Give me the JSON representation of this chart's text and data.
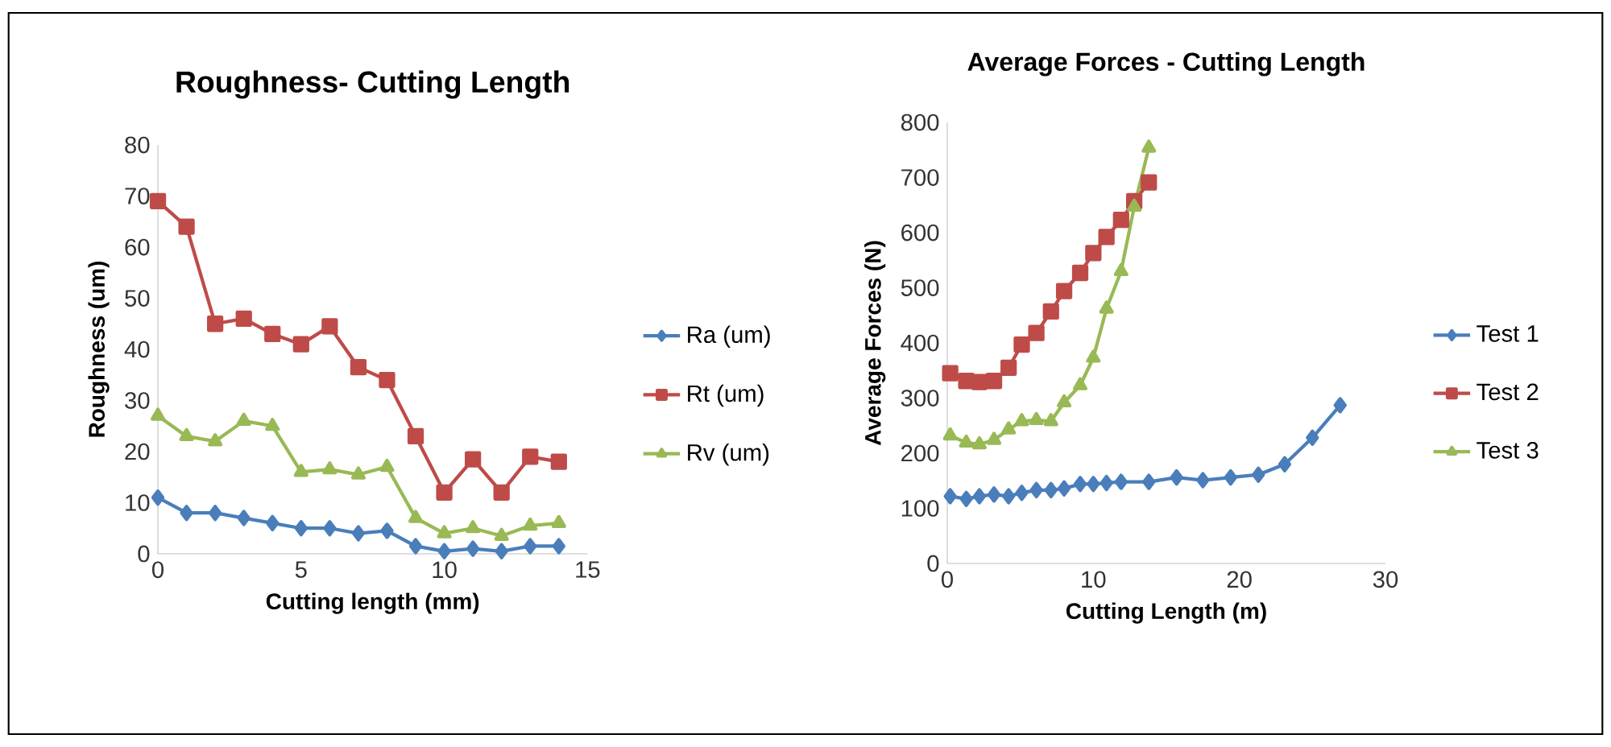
{
  "chart_data": [
    {
      "type": "line",
      "title": "Roughness- Cutting Length",
      "xlabel": "Cutting length (mm)",
      "ylabel": "Roughness (um)",
      "x": [
        0,
        1,
        2,
        3,
        4,
        5,
        6,
        7,
        8,
        9,
        10,
        11,
        12,
        13,
        14
      ],
      "series": [
        {
          "name": "Ra (um)",
          "color": "#4a7ebb",
          "marker": "diamond",
          "values": [
            11,
            8,
            8,
            7,
            6,
            5,
            5,
            4,
            4.5,
            1.5,
            0.5,
            1,
            0.5,
            1.5,
            1.5
          ]
        },
        {
          "name": "Rt (um)",
          "color": "#be4b48",
          "marker": "square",
          "values": [
            69,
            64,
            45,
            46,
            43,
            41,
            44.5,
            36.5,
            34,
            23,
            12,
            18.5,
            12,
            19,
            18
          ]
        },
        {
          "name": "Rv (um)",
          "color": "#98b954",
          "marker": "triangle",
          "values": [
            27,
            23,
            22,
            26,
            25,
            16,
            16.5,
            15.5,
            17,
            7,
            4,
            5,
            3.5,
            5.5,
            6
          ]
        }
      ],
      "xlim": [
        0,
        15
      ],
      "xticks": [
        0,
        5,
        10,
        15
      ],
      "ylim": [
        0,
        80
      ],
      "yticks": [
        0,
        10,
        20,
        30,
        40,
        50,
        60,
        70,
        80
      ],
      "legend": "right",
      "grid": false
    },
    {
      "type": "line",
      "title": "Average Forces - Cutting Length",
      "xlabel": "Cutting Length (m)",
      "ylabel": "Average Forces (N)",
      "series": [
        {
          "name": "Test 1",
          "color": "#4a7ebb",
          "marker": "diamond",
          "x": [
            0.2,
            1.3,
            2.2,
            3.2,
            4.2,
            5.1,
            6.1,
            7.1,
            8.0,
            9.1,
            10.0,
            10.9,
            11.9,
            13.8,
            15.7,
            17.5,
            19.4,
            21.3,
            23.1,
            25.0,
            26.9
          ],
          "values": [
            122,
            117,
            122,
            125,
            122,
            128,
            133,
            133,
            136,
            144,
            144,
            146,
            148,
            148,
            156,
            151,
            156,
            161,
            180,
            228,
            287
          ]
        },
        {
          "name": "Test 2",
          "color": "#be4b48",
          "marker": "square",
          "x": [
            0.2,
            1.3,
            2.2,
            3.2,
            4.2,
            5.1,
            6.1,
            7.1,
            8.0,
            9.1,
            10.0,
            10.9,
            11.9,
            12.8,
            13.8
          ],
          "values": [
            345,
            331,
            329,
            331,
            355,
            397,
            418,
            457,
            494,
            527,
            563,
            592,
            623,
            657,
            691
          ]
        },
        {
          "name": "Test 3",
          "color": "#98b954",
          "marker": "triangle",
          "x": [
            0.2,
            1.3,
            2.2,
            3.2,
            4.2,
            5.1,
            6.1,
            7.1,
            8.0,
            9.1,
            10.0,
            10.9,
            11.9,
            12.8,
            13.8
          ],
          "values": [
            232,
            219,
            216,
            224,
            243,
            258,
            260,
            258,
            292,
            323,
            373,
            462,
            530,
            647,
            754
          ]
        }
      ],
      "xlim": [
        0,
        30
      ],
      "xticks": [
        0,
        10,
        20,
        30
      ],
      "ylim": [
        0,
        800
      ],
      "yticks": [
        0,
        100,
        200,
        300,
        400,
        500,
        600,
        700,
        800
      ],
      "legend": "right",
      "grid": false
    }
  ]
}
